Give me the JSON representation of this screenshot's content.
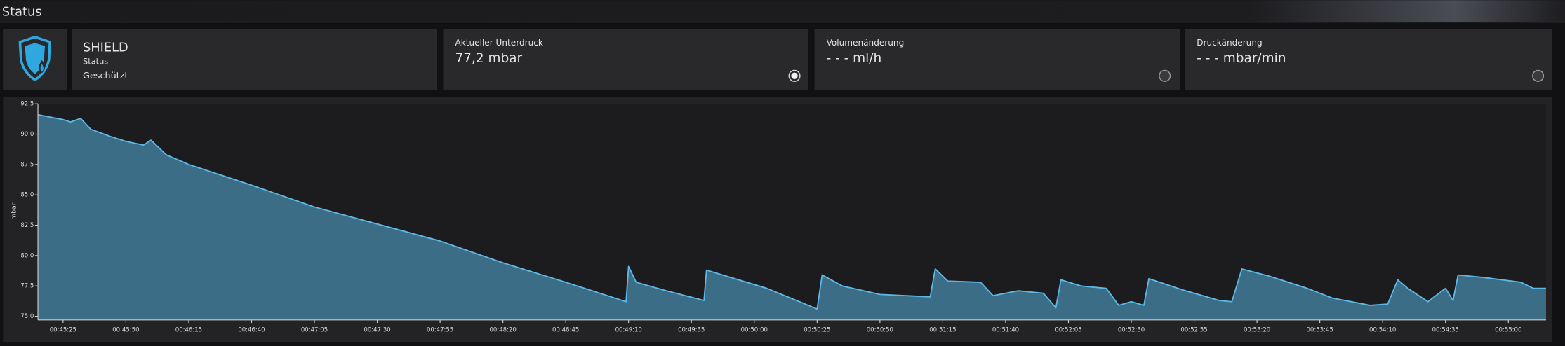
{
  "header": {
    "title": "Status"
  },
  "cards": [
    {
      "title": "SHIELD",
      "label": "Status",
      "value": "Geschützt"
    },
    {
      "label": "Aktueller Unterdruck",
      "value": "77,2 mbar"
    },
    {
      "label": "Volumenänderung",
      "value": "- - - ml/h"
    },
    {
      "label": "Druckänderung",
      "value": "- - - mbar/min"
    }
  ],
  "chart_data": {
    "type": "area",
    "ylabel": "mbar",
    "color": "#3b6d87",
    "line_color": "#5cb8e6",
    "x": [
      "00:45:15",
      "00:45:20",
      "00:45:25",
      "00:45:28",
      "00:45:32",
      "00:45:36",
      "00:45:44",
      "00:45:50",
      "00:45:57",
      "00:46:00",
      "00:46:06",
      "00:46:15",
      "00:46:40",
      "00:47:05",
      "00:47:30",
      "00:47:55",
      "00:48:20",
      "00:48:45",
      "00:49:09",
      "00:49:10",
      "00:49:13",
      "00:49:25",
      "00:49:40",
      "00:49:41",
      "00:50:05",
      "00:50:25",
      "00:50:27",
      "00:50:35",
      "00:50:50",
      "00:51:10",
      "00:51:12",
      "00:51:17",
      "00:51:30",
      "00:51:35",
      "00:51:45",
      "00:51:55",
      "00:52:00",
      "00:52:02",
      "00:52:10",
      "00:52:20",
      "00:52:25",
      "00:52:30",
      "00:52:35",
      "00:52:37",
      "00:52:50",
      "00:53:05",
      "00:53:10",
      "00:53:14",
      "00:53:25",
      "00:53:40",
      "00:53:50",
      "00:54:05",
      "00:54:12",
      "00:54:16",
      "00:54:20",
      "00:54:28",
      "00:54:35",
      "00:54:38",
      "00:54:40",
      "00:54:50",
      "00:55:05",
      "00:55:10",
      "00:55:15"
    ],
    "values": [
      91.6,
      91.4,
      91.2,
      91.0,
      91.3,
      90.4,
      89.8,
      89.4,
      89.1,
      89.5,
      88.3,
      87.5,
      85.8,
      84.0,
      82.6,
      81.2,
      79.4,
      77.8,
      76.2,
      79.1,
      77.8,
      77.1,
      76.3,
      78.8,
      77.3,
      75.6,
      78.4,
      77.5,
      76.8,
      76.6,
      78.9,
      77.9,
      77.8,
      76.7,
      77.1,
      76.9,
      75.7,
      78.0,
      77.5,
      77.3,
      75.9,
      76.2,
      75.9,
      78.1,
      77.2,
      76.3,
      76.2,
      78.9,
      78.3,
      77.3,
      76.5,
      75.9,
      76.0,
      78.0,
      77.3,
      76.2,
      77.3,
      76.3,
      78.4,
      78.2,
      77.8,
      77.3,
      77.3
    ],
    "xlim": [
      "00:45:15",
      "00:55:15"
    ],
    "xticks": [
      "00:45:25",
      "00:45:50",
      "00:46:15",
      "00:46:40",
      "00:47:05",
      "00:47:30",
      "00:47:55",
      "00:48:20",
      "00:48:45",
      "00:49:10",
      "00:49:35",
      "00:50:00",
      "00:50:25",
      "00:50:50",
      "00:51:15",
      "00:51:40",
      "00:52:05",
      "00:52:30",
      "00:52:55",
      "00:53:20",
      "00:53:45",
      "00:54:10",
      "00:54:35",
      "00:55:00"
    ],
    "ylim": [
      74.7,
      92.5
    ],
    "yticks": [
      {
        "value": 75,
        "label": "75.0"
      },
      77.5,
      {
        "value": 80,
        "label": "80.0"
      },
      82.5,
      {
        "value": 85,
        "label": "85.0"
      },
      87.5,
      {
        "value": 90,
        "label": "90.0"
      },
      92.5
    ]
  }
}
